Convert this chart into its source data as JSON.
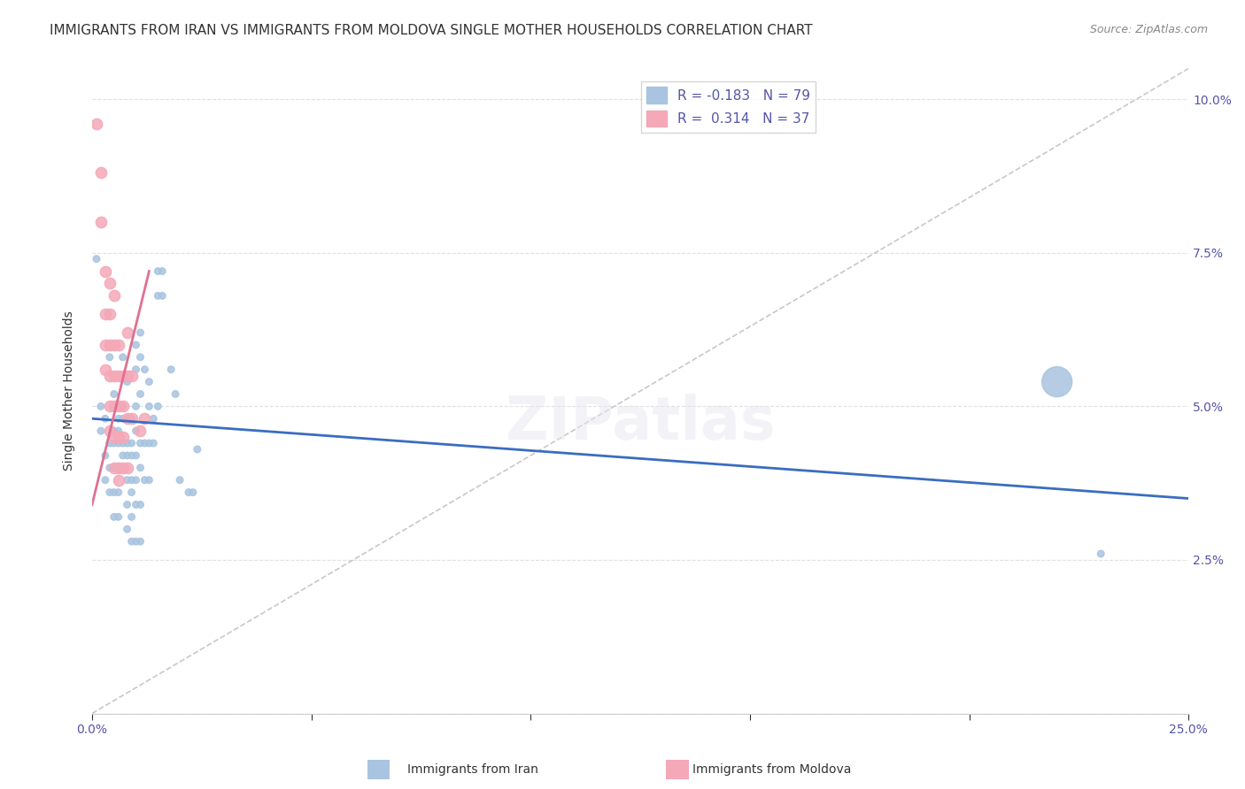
{
  "title": "IMMIGRANTS FROM IRAN VS IMMIGRANTS FROM MOLDOVA SINGLE MOTHER HOUSEHOLDS CORRELATION CHART",
  "source": "Source: ZipAtlas.com",
  "xlabel": "",
  "ylabel": "Single Mother Households",
  "xlim": [
    0.0,
    0.25
  ],
  "ylim": [
    0.0,
    0.105
  ],
  "xticks": [
    0.0,
    0.05,
    0.1,
    0.15,
    0.2,
    0.25
  ],
  "xticklabels": [
    "0.0%",
    "",
    "",
    "",
    "",
    "25.0%"
  ],
  "yticks": [
    0.0,
    0.025,
    0.05,
    0.075,
    0.1
  ],
  "yticklabels": [
    "",
    "2.5%",
    "5.0%",
    "7.5%",
    "10.0%"
  ],
  "iran_R": -0.183,
  "iran_N": 79,
  "moldova_R": 0.314,
  "moldova_N": 37,
  "iran_color": "#a8c4e0",
  "moldova_color": "#f4a8b8",
  "iran_line_color": "#3a6dbf",
  "moldova_line_color": "#e07090",
  "dashed_line_color": "#c8c8c8",
  "iran_scatter": [
    [
      0.001,
      0.074
    ],
    [
      0.002,
      0.05
    ],
    [
      0.002,
      0.046
    ],
    [
      0.003,
      0.048
    ],
    [
      0.003,
      0.042
    ],
    [
      0.003,
      0.038
    ],
    [
      0.004,
      0.058
    ],
    [
      0.004,
      0.044
    ],
    [
      0.004,
      0.04
    ],
    [
      0.004,
      0.036
    ],
    [
      0.005,
      0.052
    ],
    [
      0.005,
      0.046
    ],
    [
      0.005,
      0.044
    ],
    [
      0.005,
      0.04
    ],
    [
      0.005,
      0.036
    ],
    [
      0.005,
      0.032
    ],
    [
      0.006,
      0.048
    ],
    [
      0.006,
      0.046
    ],
    [
      0.006,
      0.044
    ],
    [
      0.006,
      0.04
    ],
    [
      0.006,
      0.036
    ],
    [
      0.006,
      0.032
    ],
    [
      0.007,
      0.058
    ],
    [
      0.007,
      0.05
    ],
    [
      0.007,
      0.048
    ],
    [
      0.007,
      0.044
    ],
    [
      0.007,
      0.042
    ],
    [
      0.007,
      0.04
    ],
    [
      0.008,
      0.054
    ],
    [
      0.008,
      0.048
    ],
    [
      0.008,
      0.044
    ],
    [
      0.008,
      0.042
    ],
    [
      0.008,
      0.038
    ],
    [
      0.008,
      0.034
    ],
    [
      0.008,
      0.03
    ],
    [
      0.009,
      0.048
    ],
    [
      0.009,
      0.044
    ],
    [
      0.009,
      0.042
    ],
    [
      0.009,
      0.038
    ],
    [
      0.009,
      0.036
    ],
    [
      0.009,
      0.032
    ],
    [
      0.009,
      0.028
    ],
    [
      0.01,
      0.06
    ],
    [
      0.01,
      0.056
    ],
    [
      0.01,
      0.05
    ],
    [
      0.01,
      0.046
    ],
    [
      0.01,
      0.042
    ],
    [
      0.01,
      0.038
    ],
    [
      0.01,
      0.034
    ],
    [
      0.01,
      0.028
    ],
    [
      0.011,
      0.062
    ],
    [
      0.011,
      0.058
    ],
    [
      0.011,
      0.052
    ],
    [
      0.011,
      0.044
    ],
    [
      0.011,
      0.04
    ],
    [
      0.011,
      0.034
    ],
    [
      0.011,
      0.028
    ],
    [
      0.012,
      0.056
    ],
    [
      0.012,
      0.044
    ],
    [
      0.012,
      0.038
    ],
    [
      0.013,
      0.054
    ],
    [
      0.013,
      0.05
    ],
    [
      0.013,
      0.044
    ],
    [
      0.013,
      0.038
    ],
    [
      0.014,
      0.048
    ],
    [
      0.014,
      0.044
    ],
    [
      0.015,
      0.072
    ],
    [
      0.015,
      0.068
    ],
    [
      0.015,
      0.05
    ],
    [
      0.016,
      0.072
    ],
    [
      0.016,
      0.068
    ],
    [
      0.018,
      0.056
    ],
    [
      0.019,
      0.052
    ],
    [
      0.02,
      0.038
    ],
    [
      0.022,
      0.036
    ],
    [
      0.023,
      0.036
    ],
    [
      0.024,
      0.043
    ],
    [
      0.22,
      0.054
    ],
    [
      0.23,
      0.026
    ]
  ],
  "iran_sizes": [
    30,
    30,
    30,
    30,
    30,
    30,
    30,
    30,
    30,
    30,
    30,
    30,
    30,
    30,
    30,
    30,
    30,
    30,
    30,
    30,
    30,
    30,
    30,
    30,
    30,
    30,
    30,
    30,
    30,
    30,
    30,
    30,
    30,
    30,
    30,
    30,
    30,
    30,
    30,
    30,
    30,
    30,
    30,
    30,
    30,
    30,
    30,
    30,
    30,
    30,
    30,
    30,
    30,
    30,
    30,
    30,
    30,
    30,
    30,
    30,
    30,
    30,
    30,
    30,
    30,
    30,
    30,
    30,
    30,
    30,
    30,
    30,
    30,
    30,
    30,
    30,
    30,
    600,
    30
  ],
  "moldova_scatter": [
    [
      0.001,
      0.096
    ],
    [
      0.002,
      0.088
    ],
    [
      0.002,
      0.08
    ],
    [
      0.003,
      0.072
    ],
    [
      0.003,
      0.065
    ],
    [
      0.003,
      0.06
    ],
    [
      0.003,
      0.056
    ],
    [
      0.004,
      0.07
    ],
    [
      0.004,
      0.065
    ],
    [
      0.004,
      0.06
    ],
    [
      0.004,
      0.055
    ],
    [
      0.004,
      0.05
    ],
    [
      0.004,
      0.046
    ],
    [
      0.005,
      0.068
    ],
    [
      0.005,
      0.06
    ],
    [
      0.005,
      0.055
    ],
    [
      0.005,
      0.05
    ],
    [
      0.005,
      0.045
    ],
    [
      0.005,
      0.04
    ],
    [
      0.006,
      0.06
    ],
    [
      0.006,
      0.055
    ],
    [
      0.006,
      0.05
    ],
    [
      0.006,
      0.045
    ],
    [
      0.006,
      0.04
    ],
    [
      0.006,
      0.038
    ],
    [
      0.007,
      0.055
    ],
    [
      0.007,
      0.05
    ],
    [
      0.007,
      0.045
    ],
    [
      0.007,
      0.04
    ],
    [
      0.008,
      0.062
    ],
    [
      0.008,
      0.055
    ],
    [
      0.008,
      0.048
    ],
    [
      0.008,
      0.04
    ],
    [
      0.009,
      0.055
    ],
    [
      0.009,
      0.048
    ],
    [
      0.011,
      0.046
    ],
    [
      0.012,
      0.048
    ]
  ],
  "background_color": "#ffffff",
  "grid_color": "#e0e0e0",
  "title_fontsize": 11,
  "axis_label_fontsize": 10,
  "tick_fontsize": 10,
  "legend_fontsize": 11
}
